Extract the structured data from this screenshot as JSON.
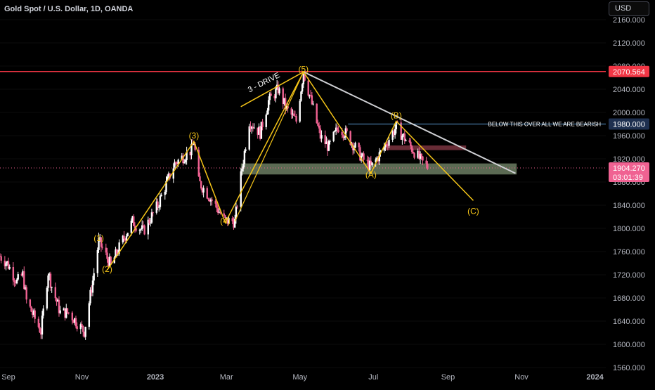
{
  "header": {
    "symbol_line": "Gold Spot / U.S. Dollar, 1D, OANDA",
    "currency": "USD"
  },
  "price_axis": {
    "ticks": [
      "2160.000",
      "2120.000",
      "2080.000",
      "2040.000",
      "2000.000",
      "1960.000",
      "1920.000",
      "1880.000",
      "1840.000",
      "1800.000",
      "1760.000",
      "1720.000",
      "1680.000",
      "1640.000",
      "1600.000",
      "1560.000"
    ],
    "tick_values": [
      2160,
      2120,
      2080,
      2040,
      2000,
      1960,
      1920,
      1880,
      1840,
      1800,
      1760,
      1720,
      1680,
      1640,
      1600,
      1560
    ],
    "resistance_label": "2070.564",
    "level_label": "1980.000",
    "current_price": "1904.270",
    "countdown": "03:01:39"
  },
  "time_axis": {
    "labels": [
      "Sep",
      "Nov",
      "2023",
      "Mar",
      "May",
      "Jul",
      "Sep",
      "Nov",
      "2024"
    ]
  },
  "annotations": {
    "wave1": "(1)",
    "wave2": "(2)",
    "wave3": "(3)",
    "wave4": "(4)",
    "wave5": "(5)",
    "waveA": "(A)",
    "waveB": "(B)",
    "waveC": "(C)",
    "three_drive": "3 - DRIVE",
    "bearish_note": "BELOW THIS  OVER ALL WE ARE BEARISH"
  },
  "colors": {
    "background": "#000000",
    "up_candle": "#ffffff",
    "down_candle": "#f06292",
    "wave_line": "#f5c518",
    "resistance_line": "#f23645",
    "level_line": "#5b9bd5",
    "trend_line": "#cfd0d4",
    "support_zone": "#6b7d62",
    "resistance_zone": "#7a3440"
  },
  "chart_data": {
    "type": "candlestick",
    "title": "Gold Spot / U.S. Dollar, 1D, OANDA",
    "x_range": [
      "2022-08-25",
      "2024-01-10"
    ],
    "ylim": [
      1555,
      2175
    ],
    "x_ticks": [
      {
        "label": "Sep",
        "date": "2022-09-01"
      },
      {
        "label": "Nov",
        "date": "2022-11-01"
      },
      {
        "label": "2023",
        "date": "2023-01-01"
      },
      {
        "label": "Mar",
        "date": "2023-03-01"
      },
      {
        "label": "May",
        "date": "2023-05-01"
      },
      {
        "label": "Jul",
        "date": "2023-07-01"
      },
      {
        "label": "Sep",
        "date": "2023-09-01"
      },
      {
        "label": "Nov",
        "date": "2023-11-01"
      },
      {
        "label": "2024",
        "date": "2024-01-01"
      }
    ],
    "price_path": [
      {
        "date": "2022-08-25",
        "price": 1752
      },
      {
        "date": "2022-08-31",
        "price": 1740
      },
      {
        "date": "2022-09-08",
        "price": 1708
      },
      {
        "date": "2022-09-13",
        "price": 1720
      },
      {
        "date": "2022-09-16",
        "price": 1675
      },
      {
        "date": "2022-09-28",
        "price": 1622
      },
      {
        "date": "2022-10-04",
        "price": 1725
      },
      {
        "date": "2022-10-07",
        "price": 1700
      },
      {
        "date": "2022-10-14",
        "price": 1655
      },
      {
        "date": "2022-10-21",
        "price": 1655
      },
      {
        "date": "2022-11-03",
        "price": 1622
      },
      {
        "date": "2022-11-10",
        "price": 1710
      },
      {
        "date": "2022-11-15",
        "price": 1778
      },
      {
        "date": "2022-11-25",
        "price": 1736
      },
      {
        "date": "2022-12-05",
        "price": 1780
      },
      {
        "date": "2022-12-13",
        "price": 1812
      },
      {
        "date": "2022-12-22",
        "price": 1795
      },
      {
        "date": "2023-01-03",
        "price": 1840
      },
      {
        "date": "2023-01-17",
        "price": 1912
      },
      {
        "date": "2023-01-31",
        "price": 1935
      },
      {
        "date": "2023-02-02",
        "price": 1950
      },
      {
        "date": "2023-02-06",
        "price": 1880
      },
      {
        "date": "2023-02-15",
        "price": 1855
      },
      {
        "date": "2023-02-28",
        "price": 1813
      },
      {
        "date": "2023-03-08",
        "price": 1812
      },
      {
        "date": "2023-03-14",
        "price": 1905
      },
      {
        "date": "2023-03-20",
        "price": 1985
      },
      {
        "date": "2023-03-29",
        "price": 1965
      },
      {
        "date": "2023-04-05",
        "price": 2020
      },
      {
        "date": "2023-04-13",
        "price": 2040
      },
      {
        "date": "2023-04-20",
        "price": 2005
      },
      {
        "date": "2023-04-28",
        "price": 1985
      },
      {
        "date": "2023-05-04",
        "price": 2070
      },
      {
        "date": "2023-05-09",
        "price": 2030
      },
      {
        "date": "2023-05-18",
        "price": 1958
      },
      {
        "date": "2023-05-25",
        "price": 1940
      },
      {
        "date": "2023-06-02",
        "price": 1975
      },
      {
        "date": "2023-06-09",
        "price": 1962
      },
      {
        "date": "2023-06-22",
        "price": 1920
      },
      {
        "date": "2023-06-29",
        "price": 1905
      },
      {
        "date": "2023-07-07",
        "price": 1930
      },
      {
        "date": "2023-07-14",
        "price": 1955
      },
      {
        "date": "2023-07-20",
        "price": 1975
      },
      {
        "date": "2023-07-27",
        "price": 1955
      },
      {
        "date": "2023-08-03",
        "price": 1935
      },
      {
        "date": "2023-08-10",
        "price": 1915
      },
      {
        "date": "2023-08-16",
        "price": 1904
      }
    ],
    "wave_labels": [
      {
        "label": "(1)",
        "date": "2022-11-15",
        "price": 1778
      },
      {
        "label": "(2)",
        "date": "2022-11-22",
        "price": 1725
      },
      {
        "label": "(3)",
        "date": "2023-02-02",
        "price": 1955
      },
      {
        "label": "(4)",
        "date": "2023-02-28",
        "price": 1808
      },
      {
        "label": "(5)",
        "date": "2023-05-04",
        "price": 2070
      },
      {
        "label": "(A)",
        "date": "2023-06-29",
        "price": 1888
      },
      {
        "label": "(B)",
        "date": "2023-07-20",
        "price": 1990
      },
      {
        "label": "(C)",
        "date": "2023-09-22",
        "price": 1825
      }
    ],
    "levels": [
      {
        "name": "resistance",
        "price": 2070.564
      },
      {
        "name": "bearish-level",
        "price": 1980.0
      },
      {
        "name": "current-price",
        "price": 1904.27
      }
    ],
    "zones": [
      {
        "name": "support-zone",
        "from": "2023-03-13",
        "to": "2023-10-28",
        "low": 1893,
        "high": 1912
      },
      {
        "name": "resistance-zone",
        "from": "2023-07-10",
        "to": "2023-09-16",
        "low": 1935,
        "high": 1943
      }
    ],
    "trendline": [
      {
        "date": "2023-05-04",
        "price": 2070
      },
      {
        "date": "2023-10-27",
        "price": 1895
      }
    ],
    "wave_path": [
      {
        "date": "2022-11-22",
        "price": 1728
      },
      {
        "date": "2023-02-02",
        "price": 1950
      },
      {
        "date": "2023-02-28",
        "price": 1810
      },
      {
        "date": "2023-05-04",
        "price": 2070
      },
      {
        "date": "2023-06-29",
        "price": 1895
      },
      {
        "date": "2023-07-20",
        "price": 1985
      },
      {
        "date": "2023-09-22",
        "price": 1848
      }
    ],
    "drive_path": [
      {
        "date": "2023-03-08",
        "price": 1812
      },
      {
        "date": "2023-05-04",
        "price": 2070
      }
    ],
    "drive_upper": [
      {
        "date": "2023-03-13",
        "price": 2010
      },
      {
        "date": "2023-05-04",
        "price": 2070
      }
    ]
  }
}
